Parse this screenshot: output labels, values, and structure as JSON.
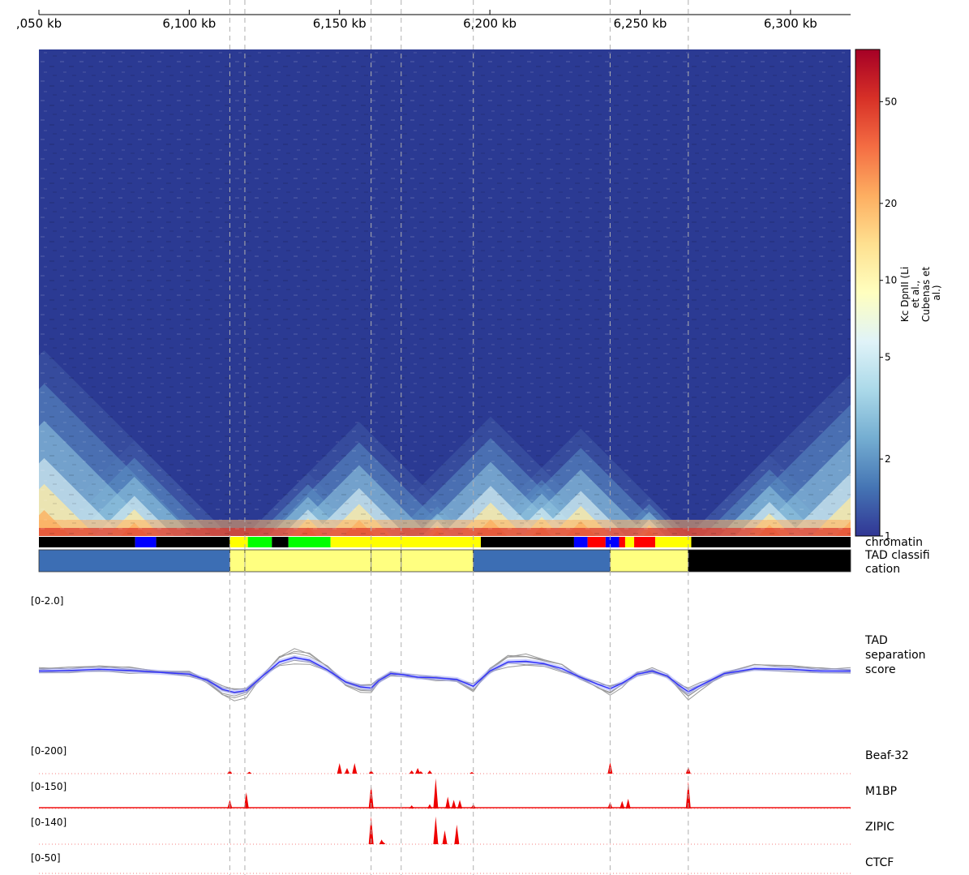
{
  "chart_data": {
    "type": "heatmap",
    "title": "",
    "x_axis": {
      "unit": "kb",
      "range_kb": [
        6050,
        6320
      ],
      "ticks": [
        {
          "value": 6050,
          "label": ",050 kb"
        },
        {
          "value": 6100,
          "label": "6,100 kb"
        },
        {
          "value": 6150,
          "label": "6,150 kb"
        },
        {
          "value": 6200,
          "label": "6,200 kb"
        },
        {
          "value": 6250,
          "label": "6,250 kb"
        },
        {
          "value": 6300,
          "label": "6,300 kb"
        }
      ]
    },
    "heatmap": {
      "colorbar_label": "Kc DpnII (Li et al., Cubenas et al.)",
      "colorbar_range": [
        1,
        80
      ],
      "colorbar_scale": "log",
      "colorbar_ticks": [
        "1",
        "2",
        "5",
        "10",
        "20",
        "50"
      ],
      "colors": [
        "#313695",
        "#4575b4",
        "#74add1",
        "#abd9e9",
        "#e0f3f8",
        "#ffffbf",
        "#fee090",
        "#fdae61",
        "#f46d43",
        "#d73027",
        "#a50026"
      ],
      "tad_boundaries_kb": [
        6050,
        6113.5,
        6118.5,
        6160.5,
        6170.5,
        6194.5,
        6240,
        6266,
        6320
      ]
    },
    "vertical_guides_kb": [
      6113.5,
      6118.5,
      6160.5,
      6170.5,
      6194.5,
      6240,
      6266
    ],
    "tracks": {
      "chromatin": {
        "label": "chromatin",
        "segments": [
          {
            "start": 6050,
            "end": 6082,
            "color": "#000000"
          },
          {
            "start": 6082,
            "end": 6089,
            "color": "#0000ff"
          },
          {
            "start": 6089,
            "end": 6113.5,
            "color": "#000000"
          },
          {
            "start": 6113.5,
            "end": 6119.5,
            "color": "#ffff00"
          },
          {
            "start": 6119.5,
            "end": 6127.5,
            "color": "#00ff00"
          },
          {
            "start": 6127.5,
            "end": 6133,
            "color": "#000000"
          },
          {
            "start": 6133,
            "end": 6147,
            "color": "#00ff00"
          },
          {
            "start": 6147,
            "end": 6197,
            "color": "#ffff00"
          },
          {
            "start": 6197,
            "end": 6228,
            "color": "#000000"
          },
          {
            "start": 6228,
            "end": 6232.5,
            "color": "#0000ff"
          },
          {
            "start": 6232.5,
            "end": 6238.5,
            "color": "#ff0000"
          },
          {
            "start": 6238.5,
            "end": 6243,
            "color": "#0000ff"
          },
          {
            "start": 6243,
            "end": 6245,
            "color": "#ff0000"
          },
          {
            "start": 6245,
            "end": 6248,
            "color": "#ffff00"
          },
          {
            "start": 6248,
            "end": 6255,
            "color": "#ff0000"
          },
          {
            "start": 6255,
            "end": 6267,
            "color": "#ffff00"
          },
          {
            "start": 6267,
            "end": 6320,
            "color": "#000000"
          }
        ]
      },
      "tad_classification": {
        "label_line1": "TAD classifi",
        "label_line2": "cation",
        "segments": [
          {
            "start": 6050,
            "end": 6113.5,
            "color": "#3c6eb4"
          },
          {
            "start": 6113.5,
            "end": 6118.5,
            "color": "#ffff80"
          },
          {
            "start": 6118.5,
            "end": 6160.5,
            "color": "#ffff80"
          },
          {
            "start": 6160.5,
            "end": 6170.5,
            "color": "#ffff80"
          },
          {
            "start": 6170.5,
            "end": 6194.5,
            "color": "#ffff80"
          },
          {
            "start": 6194.5,
            "end": 6240,
            "color": "#3c6eb4"
          },
          {
            "start": 6240,
            "end": 6266,
            "color": "#ffff80"
          },
          {
            "start": 6266,
            "end": 6320,
            "color": "#000000"
          }
        ]
      },
      "tad_separation_score": {
        "label_line1": "TAD",
        "label_line2": "separation",
        "label_line3": "score",
        "range_label": "[0-2.0]",
        "y_range": [
          0,
          2.0
        ],
        "mean_line_color": "#3030ff",
        "replicate_line_color": "#999999",
        "mean": [
          {
            "kb": 6050,
            "v": 0.9
          },
          {
            "kb": 6060,
            "v": 0.91
          },
          {
            "kb": 6070,
            "v": 0.93
          },
          {
            "kb": 6080,
            "v": 0.91
          },
          {
            "kb": 6090,
            "v": 0.88
          },
          {
            "kb": 6100,
            "v": 0.85
          },
          {
            "kb": 6106,
            "v": 0.75
          },
          {
            "kb": 6111,
            "v": 0.6
          },
          {
            "kb": 6115,
            "v": 0.55
          },
          {
            "kb": 6119,
            "v": 0.58
          },
          {
            "kb": 6124,
            "v": 0.8
          },
          {
            "kb": 6130,
            "v": 1.05
          },
          {
            "kb": 6135,
            "v": 1.12
          },
          {
            "kb": 6140,
            "v": 1.08
          },
          {
            "kb": 6146,
            "v": 0.92
          },
          {
            "kb": 6152,
            "v": 0.72
          },
          {
            "kb": 6157,
            "v": 0.64
          },
          {
            "kb": 6160.5,
            "v": 0.62
          },
          {
            "kb": 6163,
            "v": 0.74
          },
          {
            "kb": 6167,
            "v": 0.86
          },
          {
            "kb": 6171,
            "v": 0.84
          },
          {
            "kb": 6176,
            "v": 0.8
          },
          {
            "kb": 6182,
            "v": 0.79
          },
          {
            "kb": 6189,
            "v": 0.76
          },
          {
            "kb": 6194.5,
            "v": 0.65
          },
          {
            "kb": 6200,
            "v": 0.9
          },
          {
            "kb": 6206,
            "v": 1.05
          },
          {
            "kb": 6212,
            "v": 1.06
          },
          {
            "kb": 6218,
            "v": 1.02
          },
          {
            "kb": 6224,
            "v": 0.94
          },
          {
            "kb": 6230,
            "v": 0.8
          },
          {
            "kb": 6236,
            "v": 0.68
          },
          {
            "kb": 6240,
            "v": 0.61
          },
          {
            "kb": 6244,
            "v": 0.7
          },
          {
            "kb": 6249,
            "v": 0.85
          },
          {
            "kb": 6254,
            "v": 0.9
          },
          {
            "kb": 6259,
            "v": 0.82
          },
          {
            "kb": 6263,
            "v": 0.66
          },
          {
            "kb": 6266,
            "v": 0.56
          },
          {
            "kb": 6270,
            "v": 0.66
          },
          {
            "kb": 6278,
            "v": 0.86
          },
          {
            "kb": 6288,
            "v": 0.94
          },
          {
            "kb": 6300,
            "v": 0.93
          },
          {
            "kb": 6310,
            "v": 0.9
          },
          {
            "kb": 6320,
            "v": 0.9
          }
        ],
        "replicate_offsets": [
          {
            "bias": 0.06,
            "peak_gain": 0.35
          },
          {
            "bias": -0.05,
            "peak_gain": -0.25
          },
          {
            "bias": 0.1,
            "peak_gain": 0.2
          },
          {
            "bias": -0.08,
            "peak_gain": 0.1
          },
          {
            "bias": 0.03,
            "peak_gain": 0.45
          },
          {
            "bias": -0.02,
            "peak_gain": -0.15
          }
        ]
      },
      "beaf32": {
        "label": "Beaf-32",
        "range_label": "[0-200]",
        "y_range": [
          0,
          200
        ],
        "color": "#ee0000",
        "peaks": [
          {
            "kb": 6113.5,
            "v": 20
          },
          {
            "kb": 6120,
            "v": 12
          },
          {
            "kb": 6160.5,
            "v": 20
          },
          {
            "kb": 6150,
            "v": 65
          },
          {
            "kb": 6152.5,
            "v": 35
          },
          {
            "kb": 6155,
            "v": 65
          },
          {
            "kb": 6174,
            "v": 20
          },
          {
            "kb": 6176,
            "v": 35
          },
          {
            "kb": 6177,
            "v": 15
          },
          {
            "kb": 6180,
            "v": 20
          },
          {
            "kb": 6194,
            "v": 10
          },
          {
            "kb": 6240,
            "v": 70
          },
          {
            "kb": 6266,
            "v": 40
          }
        ]
      },
      "m1bp": {
        "label": "M1BP",
        "range_label": "[0-150]",
        "y_range": [
          0,
          150
        ],
        "color": "#ee0000",
        "peaks": [
          {
            "kb": 6113.5,
            "v": 40
          },
          {
            "kb": 6119,
            "v": 75
          },
          {
            "kb": 6160.5,
            "v": 110
          },
          {
            "kb": 6174,
            "v": 15
          },
          {
            "kb": 6180,
            "v": 20
          },
          {
            "kb": 6182,
            "v": 140
          },
          {
            "kb": 6186,
            "v": 55
          },
          {
            "kb": 6188,
            "v": 40
          },
          {
            "kb": 6190,
            "v": 40
          },
          {
            "kb": 6194.5,
            "v": 20
          },
          {
            "kb": 6240,
            "v": 30
          },
          {
            "kb": 6244,
            "v": 35
          },
          {
            "kb": 6246,
            "v": 45
          },
          {
            "kb": 6266,
            "v": 125
          }
        ]
      },
      "zipic": {
        "label": "ZIPIC",
        "range_label": "[0-140]",
        "y_range": [
          0,
          140
        ],
        "color": "#ee0000",
        "peaks": [
          {
            "kb": 6160.5,
            "v": 120
          },
          {
            "kb": 6164,
            "v": 20
          },
          {
            "kb": 6182,
            "v": 120
          },
          {
            "kb": 6185,
            "v": 60
          },
          {
            "kb": 6189,
            "v": 85
          },
          {
            "kb": 6164.5,
            "v": 10
          }
        ]
      },
      "ctcf": {
        "label": "CTCF",
        "range_label": "[0-50]",
        "y_range": [
          0,
          50
        ],
        "color": "#ee0000",
        "peaks": []
      }
    }
  }
}
